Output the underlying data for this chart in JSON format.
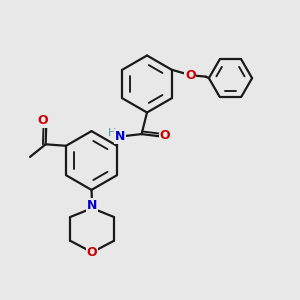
{
  "bg_color": "#e8e8e8",
  "bond_color": "#1a1a1a",
  "N_color": "#0000cc",
  "O_color": "#cc0000",
  "H_color": "#4a9a9a",
  "lw": 1.6,
  "figsize": [
    3.0,
    3.0
  ],
  "dpi": 100,
  "xlim": [
    0,
    10
  ],
  "ylim": [
    0,
    10
  ]
}
